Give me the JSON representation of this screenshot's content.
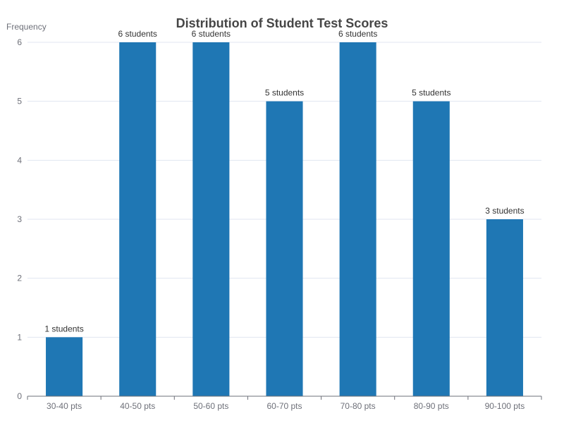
{
  "chart_data": {
    "type": "bar",
    "title": "Distribution of Student Test Scores",
    "ylabel": "Frequency",
    "xlabel": "",
    "categories": [
      "30-40 pts",
      "40-50 pts",
      "50-60 pts",
      "60-70 pts",
      "70-80 pts",
      "80-90 pts",
      "90-100 pts"
    ],
    "values": [
      1,
      6,
      6,
      5,
      6,
      5,
      3
    ],
    "data_labels": [
      "1 students",
      "6 students",
      "6 students",
      "5 students",
      "6 students",
      "5 students",
      "3 students"
    ],
    "ylim": [
      0,
      6
    ],
    "yticks": [
      "0",
      "1",
      "2",
      "3",
      "4",
      "5",
      "6"
    ],
    "grid": true,
    "legend": "none",
    "colors": {
      "bar": "#1f77b4"
    }
  }
}
